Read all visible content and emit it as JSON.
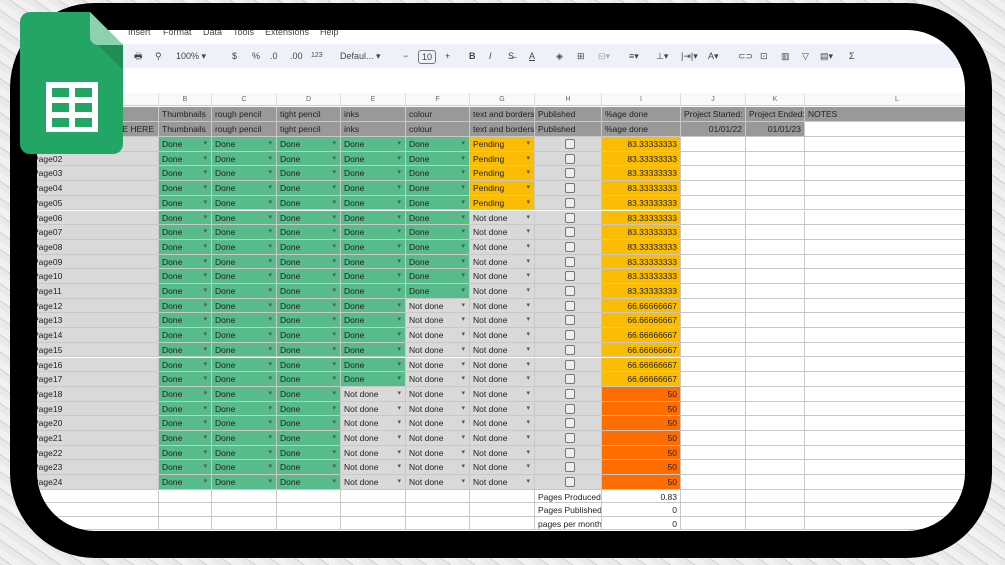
{
  "menu": [
    "Insert",
    "Format",
    "Data",
    "Tools",
    "Extensions",
    "Help"
  ],
  "toolbar": {
    "zoom": "100%",
    "currency": "$",
    "percent": "%",
    "dec_decrease": ".0",
    "dec_increase": ".00",
    "number_format": "123",
    "font": "Defaul...",
    "font_size": "10",
    "bold": "B",
    "italic": "I",
    "sum": "Σ"
  },
  "columns": [
    "B",
    "C",
    "D",
    "E",
    "F",
    "G",
    "H",
    "I",
    "J",
    "K",
    "L"
  ],
  "header_row1": [
    "",
    "Thumbnails",
    "rough pencil",
    "tight pencil",
    "inks",
    "colour",
    "text and borders",
    "Published",
    "%age done",
    "Project Started:",
    "Project Ended:",
    "NOTES"
  ],
  "header_row2": [
    "E HERE",
    "Thumbnails",
    "rough pencil",
    "tight pencil",
    "inks",
    "colour",
    "text and borders",
    "Published",
    "%age done",
    "01/01/22",
    "01/01/23",
    ""
  ],
  "rows": [
    [
      "",
      "Done",
      "Done",
      "Done",
      "Done",
      "Done",
      "Pending",
      false,
      "83.33333333"
    ],
    [
      "Page02",
      "Done",
      "Done",
      "Done",
      "Done",
      "Done",
      "Pending",
      false,
      "83.33333333"
    ],
    [
      "Page03",
      "Done",
      "Done",
      "Done",
      "Done",
      "Done",
      "Pending",
      false,
      "83.33333333"
    ],
    [
      "Page04",
      "Done",
      "Done",
      "Done",
      "Done",
      "Done",
      "Pending",
      false,
      "83.33333333"
    ],
    [
      "Page05",
      "Done",
      "Done",
      "Done",
      "Done",
      "Done",
      "Pending",
      false,
      "83.33333333"
    ],
    [
      "Page06",
      "Done",
      "Done",
      "Done",
      "Done",
      "Done",
      "Not done",
      false,
      "83.33333333"
    ],
    [
      "Page07",
      "Done",
      "Done",
      "Done",
      "Done",
      "Done",
      "Not done",
      false,
      "83.33333333"
    ],
    [
      "Page08",
      "Done",
      "Done",
      "Done",
      "Done",
      "Done",
      "Not done",
      false,
      "83.33333333"
    ],
    [
      "Page09",
      "Done",
      "Done",
      "Done",
      "Done",
      "Done",
      "Not done",
      false,
      "83.33333333"
    ],
    [
      "Page10",
      "Done",
      "Done",
      "Done",
      "Done",
      "Done",
      "Not done",
      false,
      "83.33333333"
    ],
    [
      "Page11",
      "Done",
      "Done",
      "Done",
      "Done",
      "Done",
      "Not done",
      false,
      "83.33333333"
    ],
    [
      "Page12",
      "Done",
      "Done",
      "Done",
      "Done",
      "Not done",
      "Not done",
      false,
      "66.66666667"
    ],
    [
      "Page13",
      "Done",
      "Done",
      "Done",
      "Done",
      "Not done",
      "Not done",
      false,
      "66.66666667"
    ],
    [
      "Page14",
      "Done",
      "Done",
      "Done",
      "Done",
      "Not done",
      "Not done",
      false,
      "66.66666667"
    ],
    [
      "Page15",
      "Done",
      "Done",
      "Done",
      "Done",
      "Not done",
      "Not done",
      false,
      "66.66666667"
    ],
    [
      "Page16",
      "Done",
      "Done",
      "Done",
      "Done",
      "Not done",
      "Not done",
      false,
      "66.66666667"
    ],
    [
      "Page17",
      "Done",
      "Done",
      "Done",
      "Done",
      "Not done",
      "Not done",
      false,
      "66.66666667"
    ],
    [
      "Page18",
      "Done",
      "Done",
      "Done",
      "Not done",
      "Not done",
      "Not done",
      false,
      "50"
    ],
    [
      "Page19",
      "Done",
      "Done",
      "Done",
      "Not done",
      "Not done",
      "Not done",
      false,
      "50"
    ],
    [
      "Page20",
      "Done",
      "Done",
      "Done",
      "Not done",
      "Not done",
      "Not done",
      false,
      "50"
    ],
    [
      "Page21",
      "Done",
      "Done",
      "Done",
      "Not done",
      "Not done",
      "Not done",
      false,
      "50"
    ],
    [
      "Page22",
      "Done",
      "Done",
      "Done",
      "Not done",
      "Not done",
      "Not done",
      false,
      "50"
    ],
    [
      "Page23",
      "Done",
      "Done",
      "Done",
      "Not done",
      "Not done",
      "Not done",
      false,
      "50"
    ],
    [
      "Page24",
      "Done",
      "Done",
      "Done",
      "Not done",
      "Not done",
      "Not done",
      false,
      "50"
    ]
  ],
  "summary": [
    {
      "label": "Pages Produced",
      "value": "0.83"
    },
    {
      "label": "Pages Published",
      "value": "0"
    },
    {
      "label": "pages per month",
      "value": "0"
    }
  ],
  "colors": {
    "done": "#57bb8a",
    "not_done": "#d9d9d9",
    "pending": "#fbbc04",
    "pct_high": "#fbbc04",
    "pct_low": "#ff6d01",
    "header": "#999999",
    "logo": "#23a566"
  }
}
